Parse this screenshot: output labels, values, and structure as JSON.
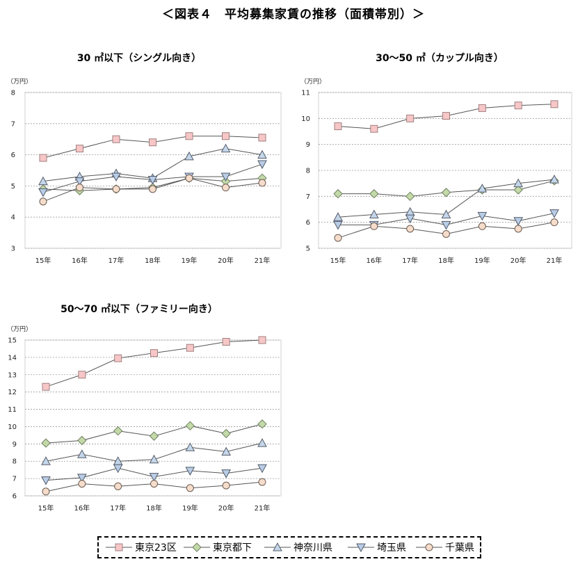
{
  "title": "＜図表４　平均募集家賃の推移（面積帯別）＞",
  "series_styles": [
    {
      "name": "東京23区",
      "marker": "square",
      "color": "#f7c6c7",
      "stroke": "#a08080"
    },
    {
      "name": "東京都下",
      "marker": "diamond",
      "color": "#c3d9a8",
      "stroke": "#6f7f60"
    },
    {
      "name": "神奈川県",
      "marker": "triangle-up",
      "color": "#c4d6ea",
      "stroke": "#555d6a"
    },
    {
      "name": "埼玉県",
      "marker": "triangle-down",
      "color": "#b9cde6",
      "stroke": "#4f5868"
    },
    {
      "name": "千葉県",
      "marker": "circle",
      "color": "#f6dccb",
      "stroke": "#6a5a50"
    }
  ],
  "chart_data": [
    {
      "type": "line",
      "title": "30 ㎡以下（シングル向き）",
      "ylabel": "（万円）",
      "categories": [
        "15年",
        "16年",
        "17年",
        "18年",
        "19年",
        "20年",
        "21年"
      ],
      "ylim": [
        3,
        8
      ],
      "yticks": [
        "3",
        "4",
        "5",
        "6",
        "7",
        "8"
      ],
      "series": [
        {
          "name": "東京23区",
          "values": [
            5.9,
            6.2,
            6.5,
            6.4,
            6.6,
            6.6,
            6.55
          ]
        },
        {
          "name": "東京都下",
          "values": [
            4.9,
            4.85,
            4.9,
            4.95,
            5.25,
            5.15,
            5.25
          ]
        },
        {
          "name": "神奈川県",
          "values": [
            5.15,
            5.3,
            5.4,
            5.25,
            5.95,
            6.2,
            6.0
          ]
        },
        {
          "name": "埼玉県",
          "values": [
            4.8,
            5.15,
            5.3,
            5.2,
            5.3,
            5.3,
            5.7
          ]
        },
        {
          "name": "千葉県",
          "values": [
            4.5,
            4.95,
            4.9,
            4.9,
            5.25,
            4.95,
            5.1
          ]
        }
      ]
    },
    {
      "type": "line",
      "title": "30～50 ㎡（カップル向き）",
      "ylabel": "（万円）",
      "categories": [
        "15年",
        "16年",
        "17年",
        "18年",
        "19年",
        "20年",
        "21年"
      ],
      "ylim": [
        5,
        11
      ],
      "yticks": [
        "5",
        "6",
        "7",
        "8",
        "9",
        "10",
        "11"
      ],
      "series": [
        {
          "name": "東京23区",
          "values": [
            9.7,
            9.6,
            10.0,
            10.1,
            10.4,
            10.5,
            10.55
          ]
        },
        {
          "name": "東京都下",
          "values": [
            7.1,
            7.1,
            7.0,
            7.15,
            7.25,
            7.25,
            7.6
          ]
        },
        {
          "name": "神奈川県",
          "values": [
            6.2,
            6.3,
            6.4,
            6.3,
            7.3,
            7.5,
            7.65
          ]
        },
        {
          "name": "埼玉県",
          "values": [
            5.9,
            5.9,
            6.15,
            5.9,
            6.25,
            6.05,
            6.35
          ]
        },
        {
          "name": "千葉県",
          "values": [
            5.4,
            5.85,
            5.75,
            5.55,
            5.85,
            5.75,
            6.0
          ]
        }
      ]
    },
    {
      "type": "line",
      "title": "50～70 ㎡以下（ファミリー向き）",
      "ylabel": "（万円）",
      "categories": [
        "15年",
        "16年",
        "17年",
        "18年",
        "19年",
        "20年",
        "21年"
      ],
      "ylim": [
        6,
        15
      ],
      "yticks": [
        "6",
        "7",
        "8",
        "9",
        "10",
        "11",
        "12",
        "13",
        "14",
        "15"
      ],
      "series": [
        {
          "name": "東京23区",
          "values": [
            12.3,
            13.0,
            13.95,
            14.25,
            14.55,
            14.9,
            15.0
          ]
        },
        {
          "name": "東京都下",
          "values": [
            9.05,
            9.2,
            9.75,
            9.45,
            10.05,
            9.6,
            10.15
          ]
        },
        {
          "name": "神奈川県",
          "values": [
            8.0,
            8.4,
            8.0,
            8.1,
            8.8,
            8.55,
            9.05
          ]
        },
        {
          "name": "埼玉県",
          "values": [
            6.9,
            7.05,
            7.6,
            7.1,
            7.45,
            7.3,
            7.6
          ]
        },
        {
          "name": "千葉県",
          "values": [
            6.25,
            6.7,
            6.55,
            6.7,
            6.45,
            6.6,
            6.8
          ]
        }
      ]
    }
  ]
}
